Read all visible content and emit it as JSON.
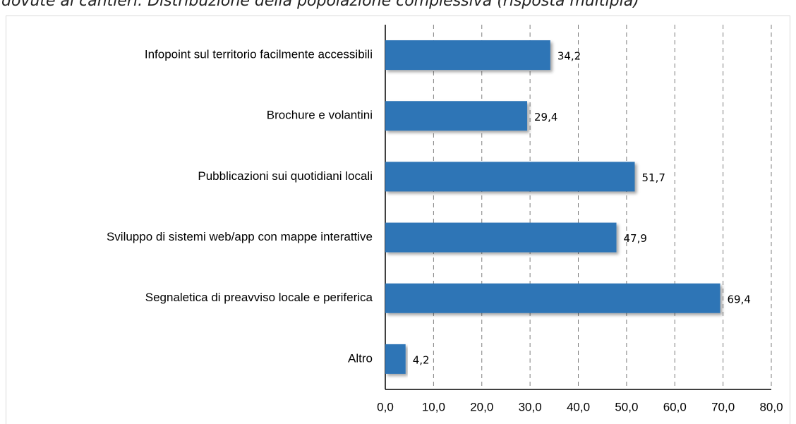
{
  "chart_data": {
    "type": "hbar",
    "title": "dovute ai cantieri. Distribuzione della popolazione complessiva (risposta multipla)",
    "categories": [
      "Infopoint sul territorio facilmente accessibili",
      "Brochure e volantini",
      "Pubblicazioni sui quotidiani locali",
      "Sviluppo di sistemi web/app con mappe interattive",
      "Segnaletica di preavviso locale e periferica",
      "Altro"
    ],
    "values": [
      34.2,
      29.4,
      51.7,
      47.9,
      69.4,
      4.2
    ],
    "value_labels": [
      "34,2",
      "29,4",
      "51,7",
      "47,9",
      "69,4",
      "4,2"
    ],
    "color": "#2e75b6",
    "xlim": [
      0,
      80
    ],
    "xticks": [
      {
        "value": 0,
        "label": "0,0"
      },
      {
        "value": 10,
        "label": "10,0"
      },
      {
        "value": 20,
        "label": "20,0"
      },
      {
        "value": 30,
        "label": "30,0"
      },
      {
        "value": 40,
        "label": "40,0"
      },
      {
        "value": 50,
        "label": "50,0"
      },
      {
        "value": 60,
        "label": "60,0"
      },
      {
        "value": 70,
        "label": "70,0"
      },
      {
        "value": 80,
        "label": "80,0"
      }
    ],
    "grid": true
  }
}
